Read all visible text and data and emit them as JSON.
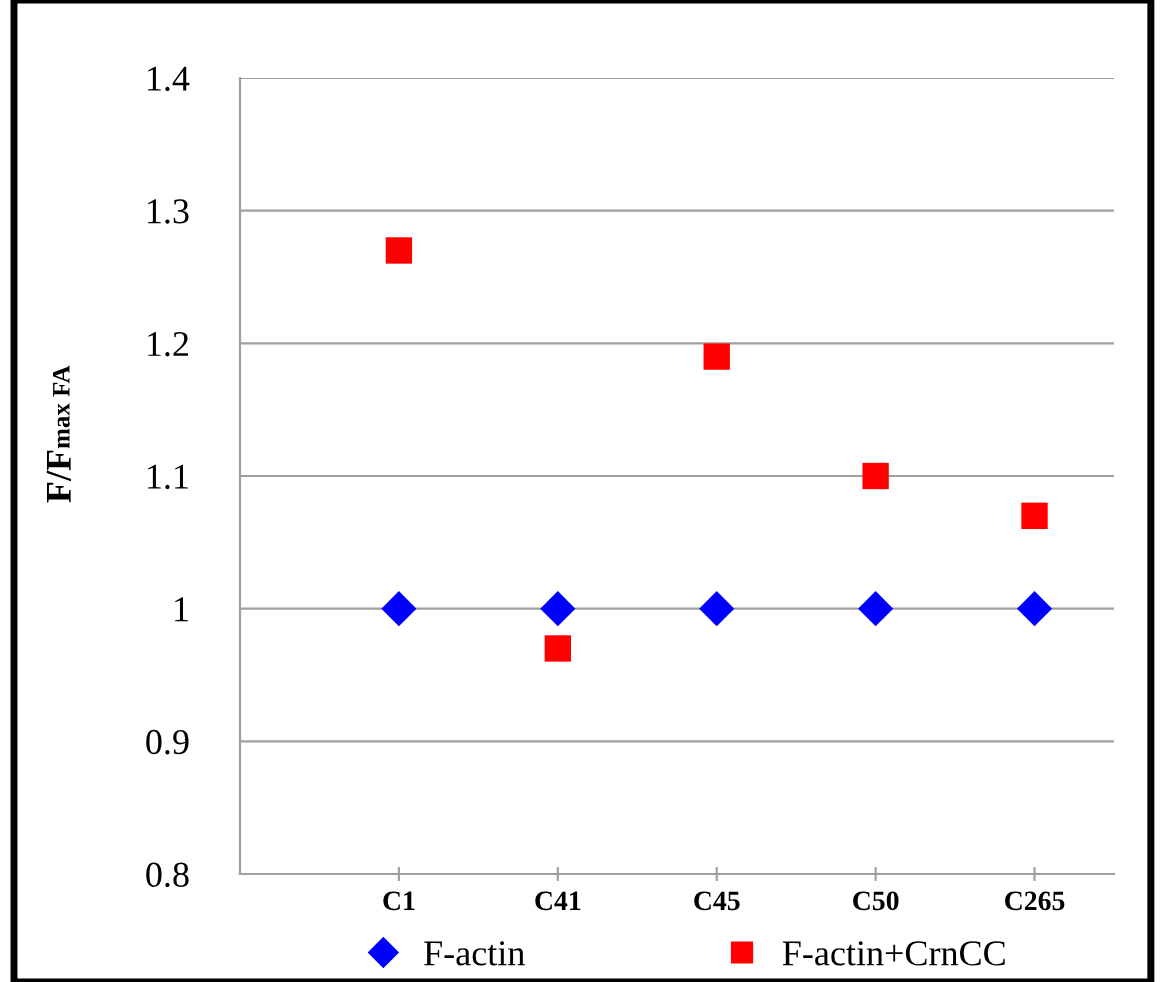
{
  "chart_data": {
    "type": "scatter",
    "ylabel": "F/F$_{max FA}$",
    "categories": [
      "C1",
      "C41",
      "C45",
      "C50",
      "C265"
    ],
    "series": [
      {
        "name": "F-actin",
        "color": "#0000ff",
        "marker": "diamond",
        "values": [
          1,
          1,
          1,
          1,
          1
        ]
      },
      {
        "name": "F-actin+CrnCC",
        "color": "#ff0000",
        "marker": "square",
        "values": [
          1.27,
          0.97,
          1.19,
          1.1,
          1.07
        ]
      }
    ],
    "ylim": [
      0.8,
      1.4
    ],
    "yticks": [
      {
        "value": 0.8,
        "label": "0.8"
      },
      {
        "value": 0.9,
        "label": "0.9"
      },
      1,
      {
        "value": 1.1,
        "label": "1.1"
      },
      {
        "value": 1.2,
        "label": "1.2"
      },
      {
        "value": 1.3,
        "label": "1.3"
      },
      {
        "value": 1.4,
        "label": "1.4"
      }
    ],
    "grid": "y",
    "legend": "bottom"
  }
}
